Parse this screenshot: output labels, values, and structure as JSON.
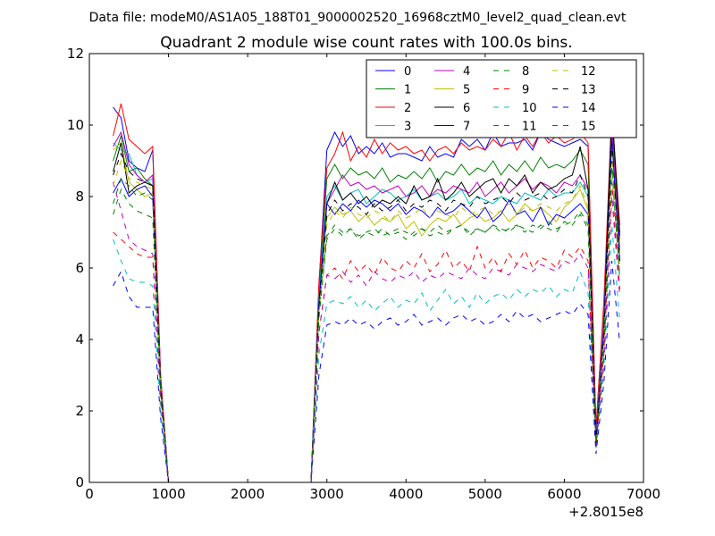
{
  "figure": {
    "suptitle": "Data file: modeM0/AS1A05_188T01_9000002520_16968cztM0_level2_quad_clean.evt",
    "x_offset_label": "+2.8015e8"
  },
  "chart_data": {
    "type": "line",
    "title": "Quadrant 2 module wise count rates with 100.0s bins.",
    "xlabel": "",
    "ylabel": "",
    "xlim": [
      0,
      7000
    ],
    "ylim": [
      0,
      12
    ],
    "xticks": [
      0,
      1000,
      2000,
      3000,
      4000,
      5000,
      6000,
      7000
    ],
    "yticks": [
      0,
      2,
      4,
      6,
      8,
      10,
      12
    ],
    "grid": false,
    "legend": {
      "placement": "top-right",
      "columns": 4
    },
    "x": [
      300,
      400,
      500,
      600,
      700,
      800,
      900,
      1000,
      1100,
      1200,
      1300,
      1400,
      1500,
      1600,
      1700,
      1800,
      1900,
      2000,
      2100,
      2200,
      2300,
      2400,
      2500,
      2600,
      2700,
      2800,
      2900,
      3000,
      3100,
      3200,
      3300,
      3400,
      3500,
      3600,
      3700,
      3800,
      3900,
      4000,
      4100,
      4200,
      4300,
      4400,
      4500,
      4600,
      4700,
      4800,
      4900,
      5000,
      5100,
      5200,
      5300,
      5400,
      5500,
      5600,
      5700,
      5800,
      5900,
      6000,
      6100,
      6200,
      6300,
      6400,
      6500,
      6600,
      6700
    ],
    "series": [
      {
        "name": "0",
        "color": "#0000ff",
        "dash": "solid",
        "values": [
          10.5,
          10.2,
          9.0,
          8.8,
          8.7,
          9.3,
          3.0,
          0,
          0,
          0,
          0,
          0,
          0,
          0,
          0,
          0,
          0,
          0,
          0,
          0,
          0,
          0,
          0,
          0,
          0,
          0,
          5.5,
          9.3,
          9.8,
          9.4,
          9.7,
          9.2,
          9.4,
          9.2,
          9.5,
          9.1,
          9.2,
          9.2,
          9.1,
          9.0,
          9.4,
          9.1,
          9.2,
          9.1,
          9.6,
          9.4,
          9.6,
          9.3,
          9.8,
          9.4,
          9.5,
          9.5,
          9.6,
          9.3,
          9.8,
          9.6,
          9.5,
          9.4,
          9.5,
          9.6,
          9.4,
          1.5,
          5.0,
          10.2,
          7.0
        ]
      },
      {
        "name": "1",
        "color": "#008000",
        "dash": "solid",
        "values": [
          9.0,
          9.7,
          8.7,
          8.8,
          8.5,
          8.3,
          2.8,
          0,
          0,
          0,
          0,
          0,
          0,
          0,
          0,
          0,
          0,
          0,
          0,
          0,
          0,
          0,
          0,
          0,
          0,
          0,
          5.3,
          8.5,
          8.9,
          8.5,
          8.8,
          8.6,
          8.7,
          8.5,
          8.8,
          8.4,
          8.6,
          8.5,
          8.7,
          8.5,
          8.8,
          8.4,
          8.7,
          8.6,
          8.9,
          8.6,
          8.8,
          8.7,
          9.0,
          8.6,
          8.9,
          8.7,
          9.0,
          8.7,
          9.1,
          8.8,
          8.9,
          8.8,
          9.0,
          9.3,
          8.9,
          1.4,
          4.8,
          10.0,
          6.8
        ]
      },
      {
        "name": "2",
        "color": "#ff0000",
        "dash": "solid",
        "values": [
          9.7,
          10.6,
          9.6,
          9.4,
          9.2,
          9.4,
          3.0,
          0,
          0,
          0,
          0,
          0,
          0,
          0,
          0,
          0,
          0,
          0,
          0,
          0,
          0,
          0,
          0,
          0,
          0,
          0,
          5.6,
          8.8,
          9.2,
          9.8,
          9.0,
          9.4,
          9.1,
          9.6,
          9.2,
          9.5,
          9.3,
          9.4,
          9.2,
          9.3,
          9.0,
          9.3,
          9.4,
          9.2,
          9.5,
          9.3,
          9.4,
          9.3,
          9.6,
          9.4,
          9.8,
          9.3,
          9.7,
          9.4,
          9.8,
          9.5,
          9.7,
          9.5,
          9.6,
          9.8,
          9.5,
          1.5,
          5.1,
          10.4,
          7.2
        ]
      },
      {
        "name": "3",
        "color": "#00bfbf",
        "dash": "solid",
        "values": [
          9.5,
          9.3,
          9.2,
          8.6,
          8.4,
          8.5,
          2.8,
          0,
          0,
          0,
          0,
          0,
          0,
          0,
          0,
          0,
          0,
          0,
          0,
          0,
          0,
          0,
          0,
          0,
          0,
          0,
          5.2,
          8.0,
          8.3,
          7.9,
          8.1,
          8.2,
          7.8,
          8.0,
          8.2,
          8.1,
          7.9,
          8.0,
          8.2,
          7.9,
          8.0,
          8.1,
          7.9,
          8.0,
          8.2,
          7.8,
          8.0,
          7.9,
          7.8,
          8.0,
          7.9,
          7.8,
          8.1,
          8.0,
          7.9,
          8.2,
          8.0,
          8.1,
          8.1,
          8.4,
          8.0,
          1.3,
          4.7,
          9.8,
          6.6
        ]
      },
      {
        "name": "4",
        "color": "#bf00bf",
        "dash": "solid",
        "values": [
          9.4,
          9.8,
          8.9,
          8.6,
          8.4,
          8.6,
          2.8,
          0,
          0,
          0,
          0,
          0,
          0,
          0,
          0,
          0,
          0,
          0,
          0,
          0,
          0,
          0,
          0,
          0,
          0,
          0,
          5.0,
          7.8,
          8.2,
          8.6,
          8.3,
          8.4,
          8.2,
          8.3,
          8.1,
          8.2,
          8.3,
          8.0,
          8.1,
          8.3,
          8.0,
          8.2,
          8.1,
          8.3,
          8.2,
          8.1,
          8.4,
          8.0,
          8.2,
          8.4,
          8.1,
          8.3,
          8.5,
          8.2,
          8.4,
          8.3,
          8.1,
          8.4,
          8.3,
          8.6,
          8.2,
          1.3,
          4.6,
          9.9,
          6.5
        ]
      },
      {
        "name": "5",
        "color": "#bfbf00",
        "dash": "solid",
        "values": [
          9.3,
          9.5,
          8.4,
          8.2,
          8.0,
          8.1,
          2.7,
          0,
          0,
          0,
          0,
          0,
          0,
          0,
          0,
          0,
          0,
          0,
          0,
          0,
          0,
          0,
          0,
          0,
          0,
          0,
          5.0,
          7.4,
          7.7,
          7.5,
          7.6,
          7.3,
          7.5,
          7.2,
          7.4,
          7.3,
          7.5,
          7.1,
          7.3,
          6.9,
          7.2,
          7.4,
          7.3,
          7.5,
          7.2,
          7.4,
          7.5,
          7.3,
          7.4,
          7.6,
          7.3,
          7.5,
          7.8,
          7.6,
          7.7,
          7.5,
          7.3,
          7.7,
          7.9,
          8.2,
          7.6,
          1.2,
          4.4,
          9.6,
          6.3
        ]
      },
      {
        "name": "6",
        "color": "#000000",
        "dash": "solid",
        "values": [
          8.7,
          9.5,
          8.1,
          8.3,
          8.4,
          8.3,
          2.7,
          0,
          0,
          0,
          0,
          0,
          0,
          0,
          0,
          0,
          0,
          0,
          0,
          0,
          0,
          0,
          0,
          0,
          0,
          0,
          5.0,
          7.8,
          8.4,
          7.9,
          8.1,
          7.8,
          8.0,
          7.7,
          7.9,
          7.8,
          8.0,
          7.8,
          8.3,
          7.9,
          8.0,
          8.5,
          7.9,
          8.1,
          8.4,
          8.0,
          8.2,
          8.4,
          8.5,
          8.1,
          8.5,
          8.3,
          8.6,
          8.1,
          8.4,
          8.2,
          8.3,
          8.5,
          8.6,
          9.4,
          8.2,
          1.2,
          4.3,
          10.5,
          6.9
        ]
      },
      {
        "name": "7",
        "color": "#0000ff",
        "dash": "solid",
        "values": [
          8.1,
          8.5,
          8.0,
          8.2,
          8.3,
          8.0,
          2.6,
          0,
          0,
          0,
          0,
          0,
          0,
          0,
          0,
          0,
          0,
          0,
          0,
          0,
          0,
          0,
          0,
          0,
          0,
          0,
          5.0,
          7.8,
          7.5,
          7.8,
          7.6,
          7.9,
          7.7,
          7.9,
          7.8,
          7.6,
          7.8,
          7.5,
          7.7,
          7.6,
          7.4,
          7.7,
          7.5,
          7.6,
          7.8,
          7.6,
          7.4,
          7.7,
          7.3,
          7.5,
          7.9,
          7.5,
          7.6,
          7.3,
          7.7,
          7.2,
          7.5,
          7.4,
          7.6,
          7.8,
          7.5,
          1.2,
          4.3,
          9.6,
          6.2
        ]
      },
      {
        "name": "8",
        "color": "#008000",
        "dash": "dashed",
        "values": [
          7.8,
          8.5,
          8.3,
          8.0,
          8.1,
          7.9,
          2.6,
          0,
          0,
          0,
          0,
          0,
          0,
          0,
          0,
          0,
          0,
          0,
          0,
          0,
          0,
          0,
          0,
          0,
          0,
          0,
          4.8,
          6.9,
          7.2,
          7.0,
          7.1,
          6.9,
          7.0,
          7.1,
          6.9,
          7.0,
          7.1,
          7.0,
          6.9,
          7.1,
          7.0,
          7.2,
          7.0,
          7.1,
          7.2,
          7.0,
          7.1,
          7.0,
          7.2,
          7.1,
          7.0,
          7.2,
          7.1,
          7.0,
          7.2,
          7.1,
          7.0,
          7.3,
          7.2,
          7.5,
          7.1,
          1.1,
          4.0,
          9.0,
          5.8
        ]
      },
      {
        "name": "9",
        "color": "#ff0000",
        "dash": "dashed",
        "values": [
          7.0,
          6.8,
          6.6,
          6.4,
          6.3,
          6.3,
          2.3,
          0,
          0,
          0,
          0,
          0,
          0,
          0,
          0,
          0,
          0,
          0,
          0,
          0,
          0,
          0,
          0,
          0,
          0,
          0,
          4.2,
          5.8,
          6.0,
          5.7,
          6.2,
          5.9,
          6.1,
          5.8,
          6.3,
          6.0,
          5.9,
          6.2,
          6.0,
          6.4,
          5.9,
          6.1,
          6.5,
          6.0,
          6.2,
          5.9,
          6.6,
          6.0,
          6.3,
          5.9,
          6.4,
          6.1,
          6.5,
          6.0,
          6.3,
          6.2,
          6.0,
          6.5,
          6.3,
          6.6,
          6.2,
          1.0,
          3.6,
          8.4,
          5.4
        ]
      },
      {
        "name": "10",
        "color": "#00bfbf",
        "dash": "dashed",
        "values": [
          6.8,
          6.2,
          5.7,
          5.6,
          5.6,
          5.5,
          2.0,
          0,
          0,
          0,
          0,
          0,
          0,
          0,
          0,
          0,
          0,
          0,
          0,
          0,
          0,
          0,
          0,
          0,
          0,
          0,
          3.6,
          5.0,
          5.1,
          5.0,
          5.2,
          4.9,
          5.1,
          4.8,
          5.0,
          5.2,
          4.9,
          5.1,
          5.0,
          5.3,
          4.8,
          5.1,
          5.4,
          5.0,
          5.2,
          4.9,
          5.3,
          5.0,
          5.2,
          5.3,
          5.1,
          5.4,
          5.2,
          5.4,
          5.3,
          5.5,
          5.2,
          5.4,
          5.3,
          5.9,
          5.3,
          0.9,
          3.2,
          7.2,
          4.5
        ]
      },
      {
        "name": "11",
        "color": "#bf00bf",
        "dash": "dashed",
        "values": [
          8.4,
          7.6,
          6.8,
          6.6,
          6.5,
          6.4,
          2.4,
          0,
          0,
          0,
          0,
          0,
          0,
          0,
          0,
          0,
          0,
          0,
          0,
          0,
          0,
          0,
          0,
          0,
          0,
          0,
          4.2,
          5.8,
          5.7,
          5.9,
          5.6,
          5.8,
          5.5,
          5.9,
          5.7,
          5.6,
          5.8,
          5.7,
          5.9,
          5.6,
          5.8,
          5.7,
          5.9,
          5.8,
          5.7,
          6.0,
          5.8,
          5.7,
          6.0,
          5.9,
          5.8,
          6.1,
          6.0,
          5.9,
          6.1,
          6.0,
          5.9,
          6.2,
          6.1,
          6.4,
          6.0,
          1.0,
          3.5,
          8.0,
          5.2
        ]
      },
      {
        "name": "12",
        "color": "#bfbf00",
        "dash": "dashed",
        "values": [
          8.3,
          9.0,
          8.5,
          8.4,
          8.3,
          8.2,
          2.7,
          0,
          0,
          0,
          0,
          0,
          0,
          0,
          0,
          0,
          0,
          0,
          0,
          0,
          0,
          0,
          0,
          0,
          0,
          0,
          4.8,
          7.2,
          7.6,
          7.4,
          7.7,
          7.5,
          7.4,
          7.6,
          7.5,
          7.3,
          7.6,
          7.4,
          7.5,
          7.7,
          7.4,
          7.6,
          7.5,
          7.4,
          7.7,
          7.5,
          7.6,
          7.7,
          7.5,
          7.6,
          7.8,
          7.5,
          7.7,
          7.6,
          7.8,
          7.7,
          7.6,
          7.8,
          7.9,
          8.3,
          7.7,
          1.1,
          4.1,
          9.3,
          6.0
        ]
      },
      {
        "name": "13",
        "color": "#000000",
        "dash": "dashed",
        "values": [
          8.6,
          9.2,
          8.7,
          8.5,
          8.4,
          8.3,
          2.7,
          0,
          0,
          0,
          0,
          0,
          0,
          0,
          0,
          0,
          0,
          0,
          0,
          0,
          0,
          0,
          0,
          0,
          0,
          0,
          4.9,
          7.5,
          7.9,
          7.6,
          7.8,
          7.7,
          7.5,
          7.8,
          7.6,
          7.7,
          7.9,
          7.6,
          7.8,
          7.7,
          7.9,
          7.8,
          7.6,
          7.9,
          7.8,
          7.7,
          8.0,
          7.8,
          7.9,
          8.0,
          7.8,
          8.1,
          7.9,
          8.0,
          8.1,
          7.9,
          8.0,
          8.2,
          8.1,
          8.6,
          8.0,
          1.1,
          4.2,
          9.5,
          6.2
        ]
      },
      {
        "name": "14",
        "color": "#0000ff",
        "dash": "dashed",
        "values": [
          5.5,
          5.9,
          5.2,
          4.9,
          4.9,
          4.9,
          1.8,
          0,
          0,
          0,
          0,
          0,
          0,
          0,
          0,
          0,
          0,
          0,
          0,
          0,
          0,
          0,
          0,
          0,
          0,
          0,
          3.0,
          4.4,
          4.5,
          4.4,
          4.6,
          4.4,
          4.5,
          4.3,
          4.5,
          4.6,
          4.4,
          4.5,
          4.7,
          4.4,
          4.5,
          4.6,
          4.4,
          4.6,
          4.7,
          4.5,
          4.6,
          4.4,
          4.5,
          4.7,
          4.5,
          4.8,
          4.6,
          4.7,
          4.5,
          4.6,
          4.7,
          4.8,
          4.7,
          5.0,
          4.7,
          0.8,
          2.8,
          6.2,
          3.9
        ]
      },
      {
        "name": "15",
        "color": "#008000",
        "dash": "dashed",
        "values": [
          7.5,
          8.2,
          7.8,
          7.6,
          7.5,
          7.4,
          2.5,
          0,
          0,
          0,
          0,
          0,
          0,
          0,
          0,
          0,
          0,
          0,
          0,
          0,
          0,
          0,
          0,
          0,
          0,
          0,
          4.6,
          6.8,
          7.1,
          6.9,
          7.1,
          6.8,
          7.0,
          6.9,
          7.1,
          6.9,
          7.0,
          6.8,
          7.0,
          7.1,
          6.9,
          7.0,
          6.9,
          7.1,
          7.2,
          6.9,
          7.1,
          7.0,
          7.2,
          7.0,
          7.1,
          7.2,
          7.0,
          7.2,
          7.1,
          7.3,
          7.1,
          7.2,
          7.3,
          7.6,
          7.2,
          1.1,
          3.9,
          8.8,
          5.7
        ]
      }
    ]
  }
}
